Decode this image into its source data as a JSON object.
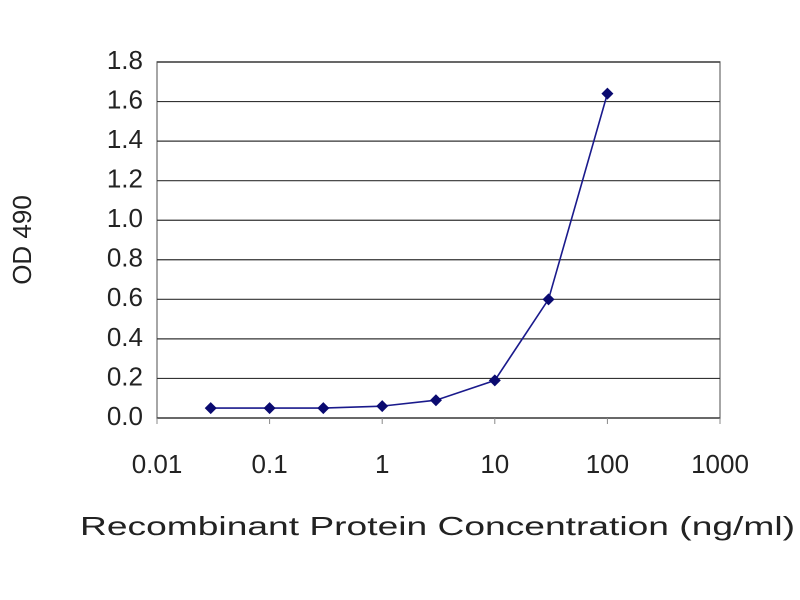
{
  "chart_data": {
    "type": "line",
    "x_label": "Recombinant Protein Concentration (ng/ml)",
    "y_label": "OD 490",
    "x": [
      0.03,
      0.1,
      0.3,
      1,
      3,
      10,
      30,
      100
    ],
    "series": [
      {
        "color": "#1a1a8c",
        "values": [
          0.05,
          0.05,
          0.05,
          0.06,
          0.09,
          0.19,
          0.6,
          1.64
        ]
      }
    ],
    "xscale": "log",
    "xlim": [
      0.01,
      1000
    ],
    "xticks": [
      0.01,
      0.1,
      1,
      10,
      100,
      1000
    ],
    "ylim": [
      0,
      1.8
    ],
    "yticks": [
      {
        "value": 0,
        "label": "0.0"
      },
      0.2,
      0.4,
      0.6,
      0.8,
      {
        "value": 1,
        "label": "1.0"
      },
      1.2,
      1.4,
      1.6,
      1.8
    ],
    "grid": true
  }
}
